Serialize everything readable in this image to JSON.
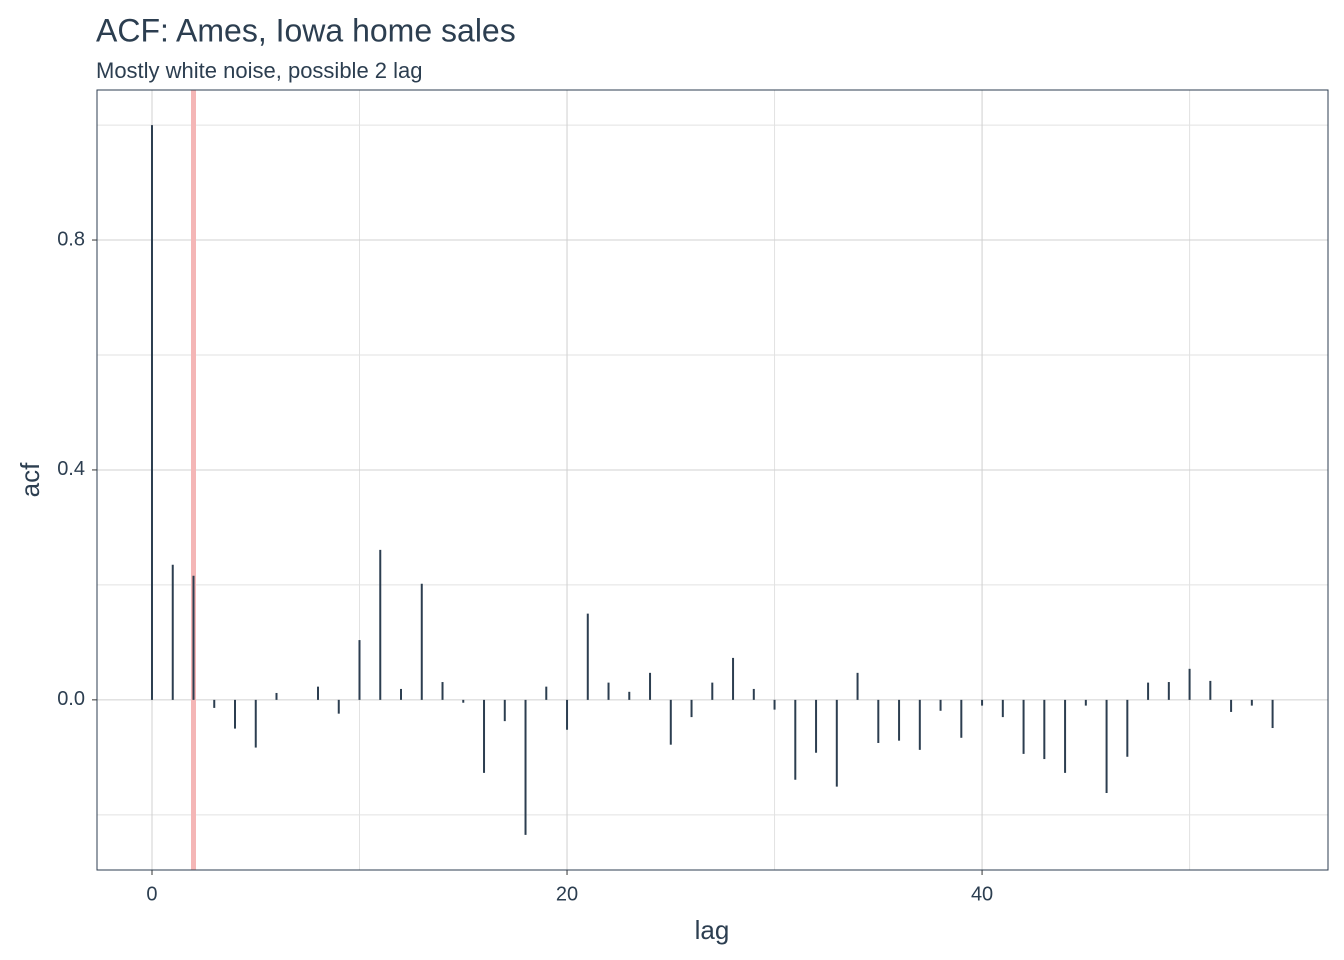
{
  "chart_data": {
    "type": "bar",
    "title": "ACF: Ames, Iowa home sales",
    "subtitle": "Mostly white noise, possible 2 lag",
    "x_label": "lag",
    "y_label": "acf",
    "x": [
      0,
      1,
      2,
      3,
      4,
      5,
      6,
      7,
      8,
      9,
      10,
      11,
      12,
      13,
      14,
      15,
      16,
      17,
      18,
      19,
      20,
      21,
      22,
      23,
      24,
      25,
      26,
      27,
      28,
      29,
      30,
      31,
      32,
      33,
      34,
      35,
      36,
      37,
      38,
      39,
      40,
      41,
      42,
      43,
      44,
      45,
      46,
      47,
      48,
      49,
      50,
      51,
      52,
      53,
      54
    ],
    "values": [
      1.0,
      0.235,
      0.216,
      -0.014,
      -0.05,
      -0.083,
      0.012,
      0,
      0.023,
      -0.024,
      0.104,
      0.261,
      0.019,
      0.202,
      0.031,
      -0.005,
      -0.127,
      -0.037,
      -0.235,
      0.023,
      -0.052,
      0.15,
      0.03,
      0.014,
      0.047,
      -0.078,
      -0.03,
      0.03,
      0.073,
      0.019,
      -0.017,
      -0.139,
      -0.092,
      -0.151,
      0.047,
      -0.075,
      -0.071,
      -0.087,
      -0.019,
      -0.066,
      -0.01,
      -0.03,
      -0.094,
      -0.103,
      -0.127,
      -0.01,
      -0.162,
      -0.099,
      0.03,
      0.031,
      0.054,
      0.033,
      -0.021,
      -0.01,
      -0.049
    ],
    "color": "#2c3e50",
    "vline": 2,
    "vline_color": "#f4b6b6",
    "xlim": [
      -2.65,
      56.67
    ],
    "xticks": [
      0,
      20,
      40
    ],
    "xminor": [
      10,
      30,
      50
    ],
    "ylim": [
      -0.296,
      1.061
    ],
    "yticks": [
      {
        "value": 0,
        "label": "0.0"
      },
      0.4,
      0.8
    ],
    "yminor": [
      -0.2,
      0.2,
      0.6,
      1.0
    ],
    "grid": true
  }
}
